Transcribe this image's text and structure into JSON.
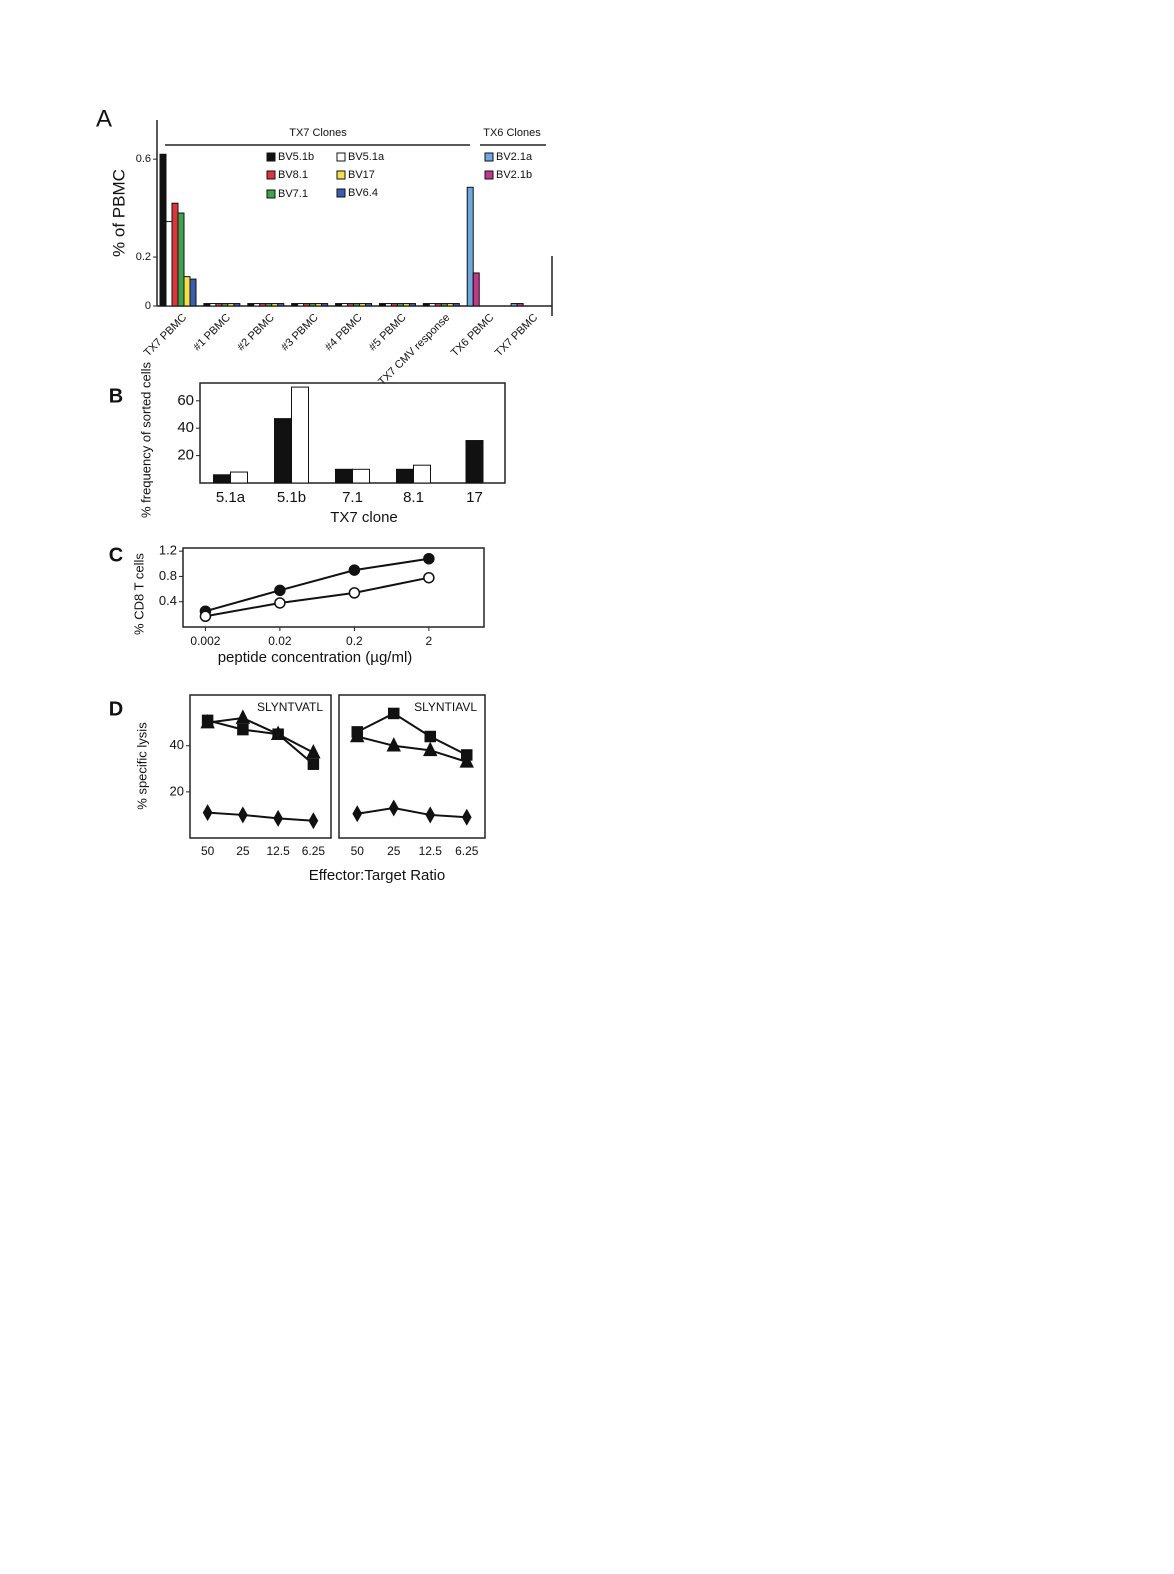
{
  "chart_data": [
    {
      "type": "bar",
      "panel_label": "A",
      "ylabel": "% of PBMC",
      "groups": [
        "TX7 Clones",
        "TX6 Clones"
      ],
      "categories": [
        "TX7 PBMC",
        "#1 PBMC",
        "#2 PBMC",
        "#3 PBMC",
        "#4 PBMC",
        "#5 PBMC",
        "TX7 CMV response",
        "TX6 PBMC",
        "TX7 PBMC"
      ],
      "series": [
        {
          "name": "BV5.1b",
          "color": "#111111",
          "values": [
            0.62,
            0.01,
            0.01,
            0.01,
            0.01,
            0.01,
            0.01,
            null,
            null
          ]
        },
        {
          "name": "BV5.1a",
          "color": "#ffffff",
          "values": [
            0.345,
            0.01,
            0.01,
            0.01,
            0.01,
            0.01,
            0.01,
            null,
            null
          ]
        },
        {
          "name": "BV8.1",
          "color": "#d9363e",
          "values": [
            0.42,
            0.01,
            0.01,
            0.01,
            0.01,
            0.01,
            0.01,
            null,
            null
          ]
        },
        {
          "name": "BV7.1",
          "color": "#3fa34d",
          "values": [
            0.38,
            0.01,
            0.01,
            0.01,
            0.01,
            0.01,
            0.01,
            null,
            null
          ]
        },
        {
          "name": "BV17",
          "color": "#f2e04a",
          "values": [
            0.12,
            0.01,
            0.01,
            0.01,
            0.01,
            0.01,
            0.01,
            null,
            null
          ]
        },
        {
          "name": "BV6.4",
          "color": "#3b5fb0",
          "values": [
            0.11,
            0.01,
            0.01,
            0.01,
            0.01,
            0.01,
            0.01,
            null,
            null
          ]
        },
        {
          "name": "BV2.1a",
          "color": "#6fa8dc",
          "values": [
            null,
            null,
            null,
            null,
            null,
            null,
            null,
            0.485,
            0.01
          ]
        },
        {
          "name": "BV2.1b",
          "color": "#c2378a",
          "values": [
            null,
            null,
            null,
            null,
            null,
            null,
            null,
            0.135,
            0.01
          ]
        }
      ],
      "ylim": [
        0,
        0.76
      ],
      "yticks": [
        0,
        0.2,
        0.6
      ]
    },
    {
      "type": "bar",
      "panel_label": "B",
      "ylabel": "% frequency of sorted cells",
      "xlabel": "TX7 clone",
      "categories": [
        "5.1a",
        "5.1b",
        "7.1",
        "8.1",
        "17"
      ],
      "series": [
        {
          "color": "#111111",
          "values": [
            6,
            47,
            10,
            10,
            31
          ]
        },
        {
          "color": "#ffffff",
          "values": [
            8,
            70,
            10,
            13,
            null
          ]
        }
      ],
      "ylim": [
        0,
        73
      ],
      "yticks": [
        20,
        40,
        60
      ]
    },
    {
      "type": "line",
      "panel_label": "C",
      "ylabel": "% CD8 T cells",
      "xlabel": "peptide concentration (µg/ml)",
      "x": [
        0.002,
        0.02,
        0.2,
        2
      ],
      "xscale": "log",
      "series": [
        {
          "marker": "circle",
          "color": "#111111",
          "fill": "#111111",
          "values": [
            0.25,
            0.58,
            0.9,
            1.08
          ]
        },
        {
          "marker": "circle",
          "color": "#111111",
          "fill": "#ffffff",
          "values": [
            0.17,
            0.38,
            0.54,
            0.78
          ]
        }
      ],
      "xlim": [
        0.001,
        11
      ],
      "xticks": [
        0.002,
        0.02,
        0.2,
        2
      ],
      "ylim": [
        0,
        1.25
      ],
      "yticks": [
        0.4,
        0.8,
        1.2
      ]
    },
    {
      "type": "line",
      "panel_label": "D",
      "title": "SLYNTVATL",
      "ylabel": "% specific lysis",
      "xlabel": "Effector:Target Ratio",
      "categories": [
        "50",
        "25",
        "12.5",
        "6.25"
      ],
      "series": [
        {
          "marker": "square",
          "color": "#111111",
          "fill": "#111111",
          "values": [
            51,
            47,
            45,
            32
          ]
        },
        {
          "marker": "triangle",
          "color": "#111111",
          "fill": "#111111",
          "values": [
            50,
            52,
            45,
            37
          ]
        },
        {
          "marker": "diamond",
          "color": "#111111",
          "fill": "#111111",
          "values": [
            11,
            10,
            8.5,
            7.5
          ]
        }
      ],
      "ylim": [
        0,
        62
      ],
      "yticks": [
        20,
        40
      ]
    },
    {
      "type": "line",
      "title": "SLYNTIAVL",
      "categories": [
        "50",
        "25",
        "12.5",
        "6.25"
      ],
      "series": [
        {
          "marker": "square",
          "color": "#111111",
          "fill": "#111111",
          "values": [
            46,
            54,
            44,
            36
          ]
        },
        {
          "marker": "triangle",
          "color": "#111111",
          "fill": "#111111",
          "values": [
            44,
            40,
            38,
            33
          ]
        },
        {
          "marker": "diamond",
          "color": "#111111",
          "fill": "#111111",
          "values": [
            10.5,
            13,
            10,
            9
          ]
        }
      ],
      "ylim": [
        0,
        62
      ]
    }
  ]
}
